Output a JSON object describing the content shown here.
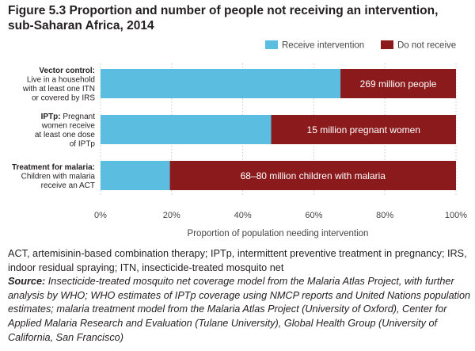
{
  "figure": {
    "title_line1": "Figure 5.3 Proportion and number of people not receiving an intervention,",
    "title_line2": "sub-Saharan Africa, 2014"
  },
  "colors": {
    "receive": "#5bbde0",
    "not_receive": "#8b1a1c",
    "grid": "#c8c8c8",
    "axis_text": "#444444"
  },
  "chart_data": {
    "type": "bar",
    "orientation": "horizontal",
    "stacked": true,
    "categories": [
      {
        "label_bold": "Vector control:",
        "label_lines": [
          "Live in a household",
          "with at least one ITN",
          "or covered by IRS"
        ]
      },
      {
        "label_bold": "IPTp:",
        "label_bold_suffix": " Pregnant",
        "label_lines": [
          "women receive",
          "at least one dose",
          "of IPTp"
        ]
      },
      {
        "label_bold": "Treatment for malaria:",
        "label_lines": [
          "Children with malaria",
          "receive an ACT"
        ]
      }
    ],
    "series": [
      {
        "name": "Receive intervention",
        "values": [
          67.5,
          48,
          19.5
        ]
      },
      {
        "name": "Do not receive",
        "values": [
          32.5,
          52,
          80.5
        ]
      }
    ],
    "bar_labels": [
      "269 million people",
      "15 million pregnant women",
      "68–80 million children with malaria"
    ],
    "xlabel": "Proportion of population needing intervention",
    "xlim": [
      0,
      100
    ],
    "xticks": [
      "0%",
      "20%",
      "40%",
      "60%",
      "80%",
      "100%"
    ],
    "legend": {
      "position": "top-right"
    },
    "grid": "vertical"
  },
  "notes": {
    "abbreviations": "ACT, artemisinin-based combination therapy; IPTp, intermittent preventive treatment in pregnancy; IRS, indoor residual spraying; ITN, insecticide-treated mosquito net",
    "source_label": "Source:",
    "source_text": " Insecticide-treated mosquito net coverage model from the Malaria Atlas Project, with further analysis by WHO; WHO estimates of IPTp coverage using NMCP reports and United Nations population estimates; malaria treatment model from the Malaria Atlas Project (University of Oxford), Center for Applied Malaria Research and Evaluation (Tulane University), Global Health Group (University of California, San Francisco)"
  }
}
